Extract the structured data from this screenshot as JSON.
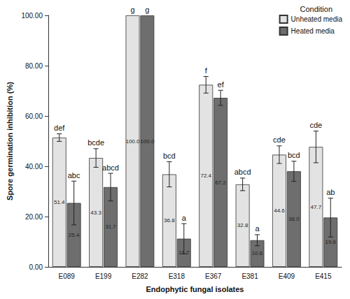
{
  "chart_data": {
    "type": "bar",
    "x_label": "Endophytic fungal isolates",
    "y_label": "Spore germination inhibition (%)",
    "legend_title": "Condition",
    "legend": "top-right",
    "grid": false,
    "data_labels": true,
    "categories": [
      "E089",
      "E199",
      "E282",
      "E318",
      "E367",
      "E381",
      "E409",
      "E415"
    ],
    "series": [
      {
        "name": "Unheated media",
        "color": "#e3e3e3",
        "values": [
          51.4,
          43.3,
          100.0,
          36.8,
          72.4,
          32.8,
          44.6,
          47.7
        ],
        "value_labels": [
          "51.4",
          "43.3",
          "100.0",
          "36.8",
          "72.4",
          "32.8",
          "44.6",
          "47.7"
        ],
        "errors": [
          1.5,
          3.7,
          0,
          5.0,
          3.3,
          2.5,
          3.5,
          6.3
        ],
        "letters": [
          "def",
          "bcde",
          "g",
          "bcd",
          "f",
          "abcd",
          "cde",
          "cde"
        ]
      },
      {
        "name": "Heated media",
        "color": "#6e6e6e",
        "values": [
          25.4,
          31.7,
          100.0,
          11.2,
          67.2,
          10.6,
          38.0,
          19.6
        ],
        "value_labels": [
          "25.4",
          "31.7",
          "100.0",
          "11.2",
          "67.2",
          "10.6",
          "38.0",
          "19.6"
        ],
        "errors": [
          8.7,
          5.5,
          0,
          6.0,
          3.0,
          2.2,
          4.0,
          7.7
        ],
        "letters": [
          "abc",
          "abcd",
          "g",
          "a",
          "ef",
          "a",
          "bcd",
          "ab"
        ]
      }
    ],
    "ylim": [
      0,
      100
    ],
    "yticks": [
      {
        "value": 0,
        "label": "0.00"
      },
      {
        "value": 20,
        "label": "20.00"
      },
      {
        "value": 40,
        "label": "40.00"
      },
      {
        "value": 60,
        "label": "60.00"
      },
      {
        "value": 80,
        "label": "80.00"
      },
      {
        "value": 100,
        "label": "100.00"
      }
    ]
  }
}
